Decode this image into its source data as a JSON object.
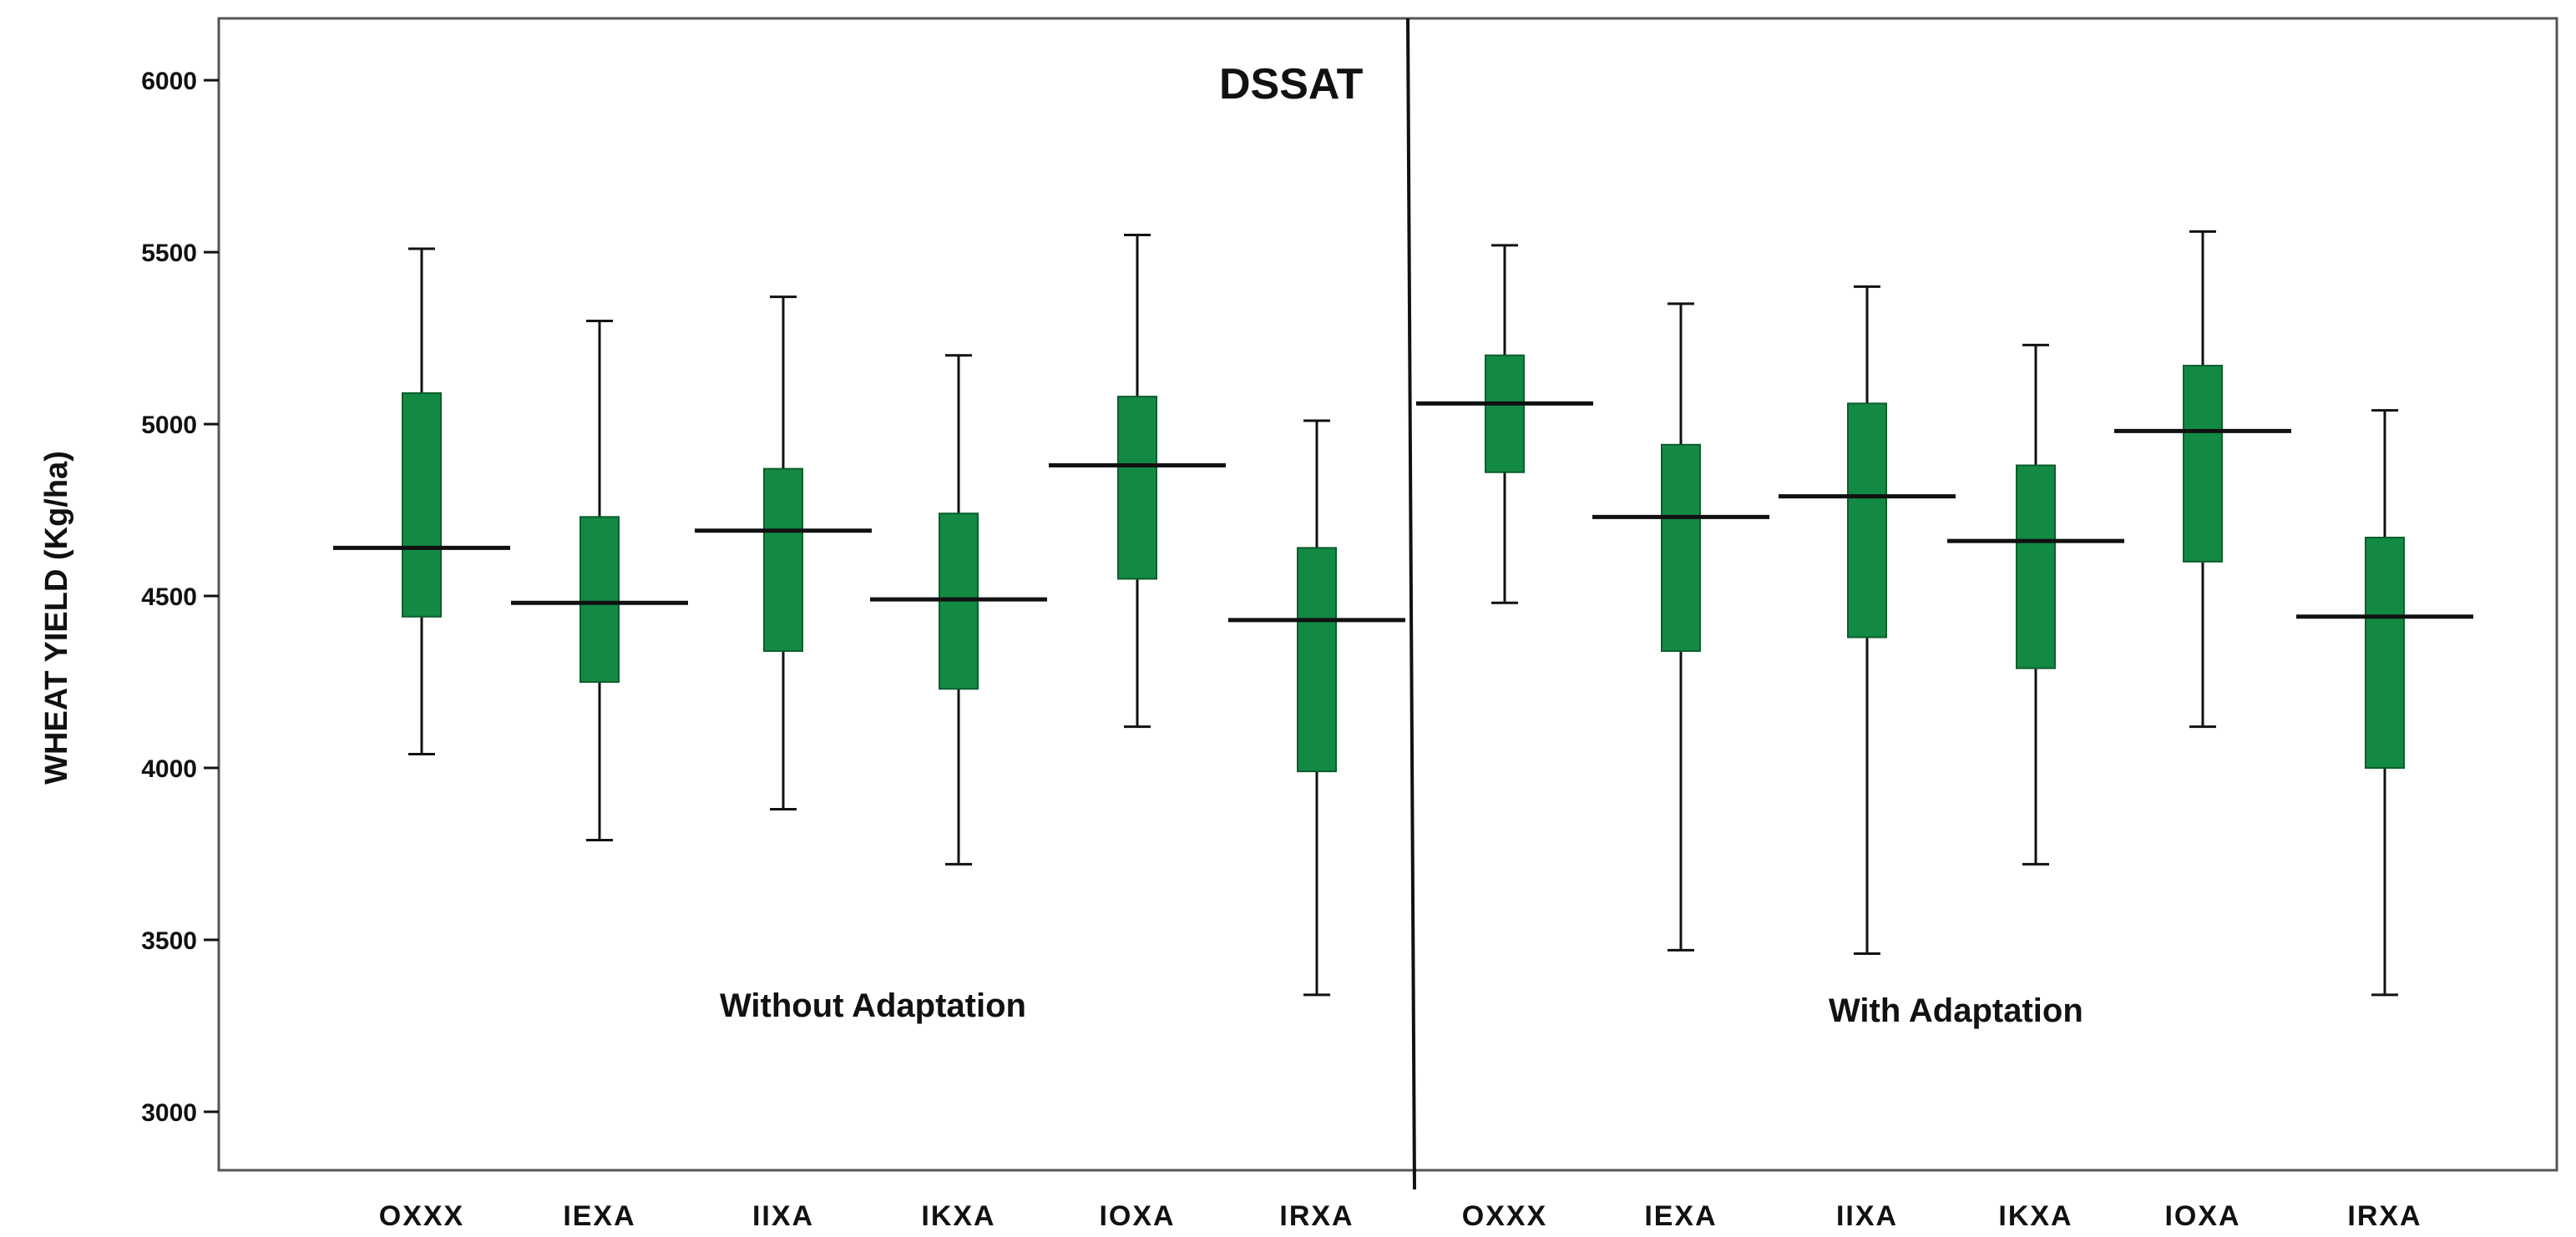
{
  "chart_data": {
    "type": "boxplot",
    "title": "DSSAT",
    "ylabel": "WHEAT YIELD (Kg/ha)",
    "xlabel": "",
    "ylim": [
      2830,
      6180
    ],
    "yticks": [
      3000,
      3500,
      4000,
      4500,
      5000,
      5500,
      6000
    ],
    "grid": false,
    "colors": {
      "box_fill": "#138a44",
      "box_edge": "#0c5e2c",
      "line": "#111111"
    },
    "groups": [
      {
        "name": "Without Adaptation",
        "categories": [
          "OXXX",
          "IEXA",
          "IIXA",
          "IKXA",
          "IOXA",
          "IRXA"
        ],
        "boxes": [
          {
            "min": 4040,
            "q1": 4440,
            "median": 4640,
            "q3": 5090,
            "max": 5510
          },
          {
            "min": 3790,
            "q1": 4250,
            "median": 4480,
            "q3": 4730,
            "max": 5300
          },
          {
            "min": 3880,
            "q1": 4340,
            "median": 4690,
            "q3": 4870,
            "max": 5370
          },
          {
            "min": 3720,
            "q1": 4230,
            "median": 4490,
            "q3": 4740,
            "max": 5200
          },
          {
            "min": 4120,
            "q1": 4550,
            "median": 4880,
            "q3": 5080,
            "max": 5550
          },
          {
            "min": 3340,
            "q1": 3990,
            "median": 4430,
            "q3": 4640,
            "max": 5010
          }
        ]
      },
      {
        "name": "With Adaptation",
        "categories": [
          "OXXX",
          "IEXA",
          "IIXA",
          "IKXA",
          "IOXA",
          "IRXA"
        ],
        "boxes": [
          {
            "min": 4480,
            "q1": 4860,
            "median": 5060,
            "q3": 5200,
            "max": 5520
          },
          {
            "min": 3470,
            "q1": 4340,
            "median": 4730,
            "q3": 4940,
            "max": 5350
          },
          {
            "min": 3460,
            "q1": 4380,
            "median": 4790,
            "q3": 5060,
            "max": 5400
          },
          {
            "min": 3720,
            "q1": 4290,
            "median": 4660,
            "q3": 4880,
            "max": 5230
          },
          {
            "min": 4120,
            "q1": 4600,
            "median": 4980,
            "q3": 5170,
            "max": 5560
          },
          {
            "min": 3340,
            "q1": 4000,
            "median": 4440,
            "q3": 4670,
            "max": 5040
          }
        ]
      }
    ]
  }
}
